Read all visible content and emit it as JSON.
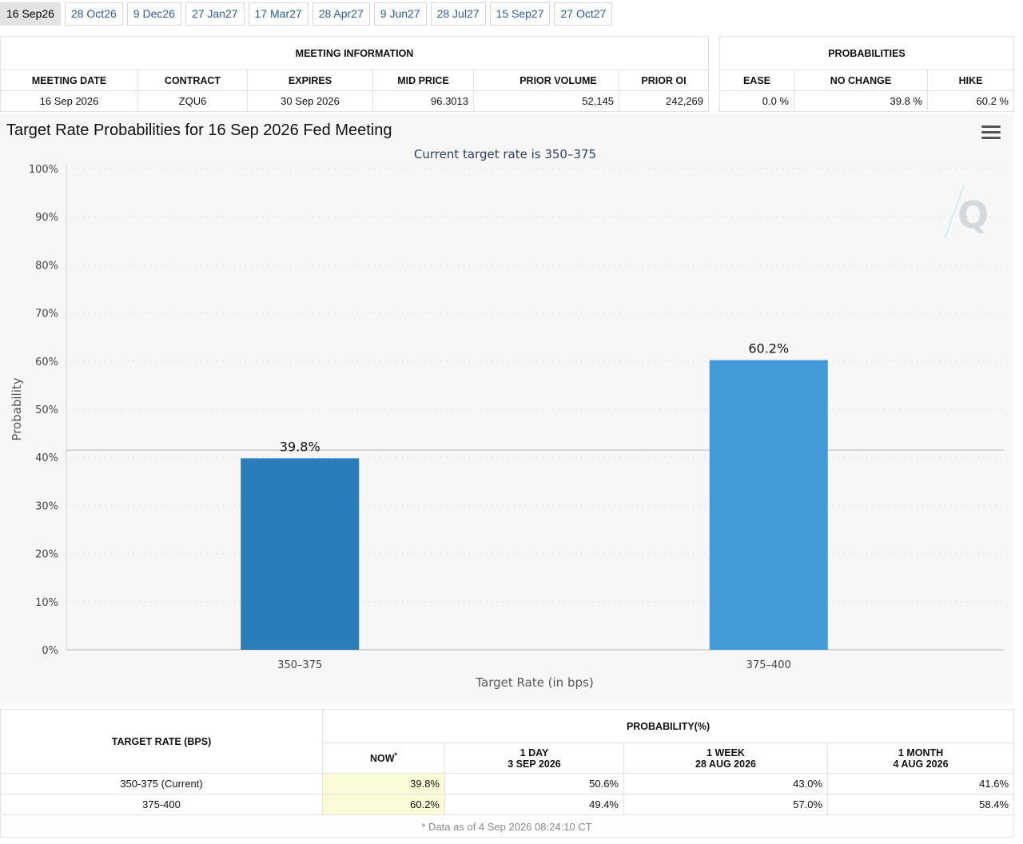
{
  "tabs": [
    {
      "label": "16 Sep26",
      "active": true
    },
    {
      "label": "28 Oct26"
    },
    {
      "label": "9 Dec26"
    },
    {
      "label": "27 Jan27"
    },
    {
      "label": "17 Mar27"
    },
    {
      "label": "28 Apr27"
    },
    {
      "label": "9 Jun27"
    },
    {
      "label": "28 Jul27"
    },
    {
      "label": "15 Sep27"
    },
    {
      "label": "27 Oct27"
    }
  ],
  "meeting_info": {
    "title": "MEETING INFORMATION",
    "headers": [
      "MEETING DATE",
      "CONTRACT",
      "EXPIRES",
      "MID PRICE",
      "PRIOR VOLUME",
      "PRIOR OI"
    ],
    "row": [
      "16 Sep 2026",
      "ZQU6",
      "30 Sep 2026",
      "96.3013",
      "52,145",
      "242,269"
    ]
  },
  "probabilities": {
    "title": "PROBABILITIES",
    "headers": [
      "EASE",
      "NO CHANGE",
      "HIKE"
    ],
    "row": [
      "0.0 %",
      "39.8 %",
      "60.2 %"
    ]
  },
  "chart": {
    "title": "Target Rate Probabilities for 16 Sep 2026 Fed Meeting",
    "subtitle": "Current target rate is 350–375"
  },
  "chart_data": {
    "type": "bar",
    "title": "Target Rate Probabilities for 16 Sep 2026 Fed Meeting",
    "subtitle": "Current target rate is 350–375",
    "xlabel": "Target Rate (in bps)",
    "ylabel": "Probability",
    "categories": [
      "350–375",
      "375–400"
    ],
    "values": [
      39.8,
      60.2
    ],
    "data_labels": [
      "39.8%",
      "60.2%"
    ],
    "bar_colors": [
      "#2a7db9",
      "#429bd6"
    ],
    "yticks": [
      "0%",
      "10%",
      "20%",
      "30%",
      "40%",
      "50%",
      "60%",
      "70%",
      "80%",
      "90%",
      "100%"
    ],
    "ylim": [
      0,
      100
    ],
    "reference_line": 41.5,
    "grid": true,
    "legend": false
  },
  "prob_table": {
    "col_target": "TARGET RATE (BPS)",
    "group": "PROBABILITY(%)",
    "now": {
      "label": "NOW",
      "mark": "*"
    },
    "col_day": {
      "line1": "1 DAY",
      "line2": "3 SEP 2026"
    },
    "col_week": {
      "line1": "1 WEEK",
      "line2": "28 AUG 2026"
    },
    "col_month": {
      "line1": "1 MONTH",
      "line2": "4 AUG 2026"
    },
    "rows": [
      {
        "rate": "350-375 (Current)",
        "now": "39.8%",
        "day": "50.6%",
        "week": "43.0%",
        "month": "41.6%"
      },
      {
        "rate": "375-400",
        "now": "60.2%",
        "day": "49.4%",
        "week": "57.0%",
        "month": "58.4%"
      }
    ],
    "footnote": "* Data as of 4 Sep 2026 08:24:10 CT"
  },
  "colors": {
    "accent": "#2a5c9a",
    "highlight": "#fbfbd8"
  }
}
